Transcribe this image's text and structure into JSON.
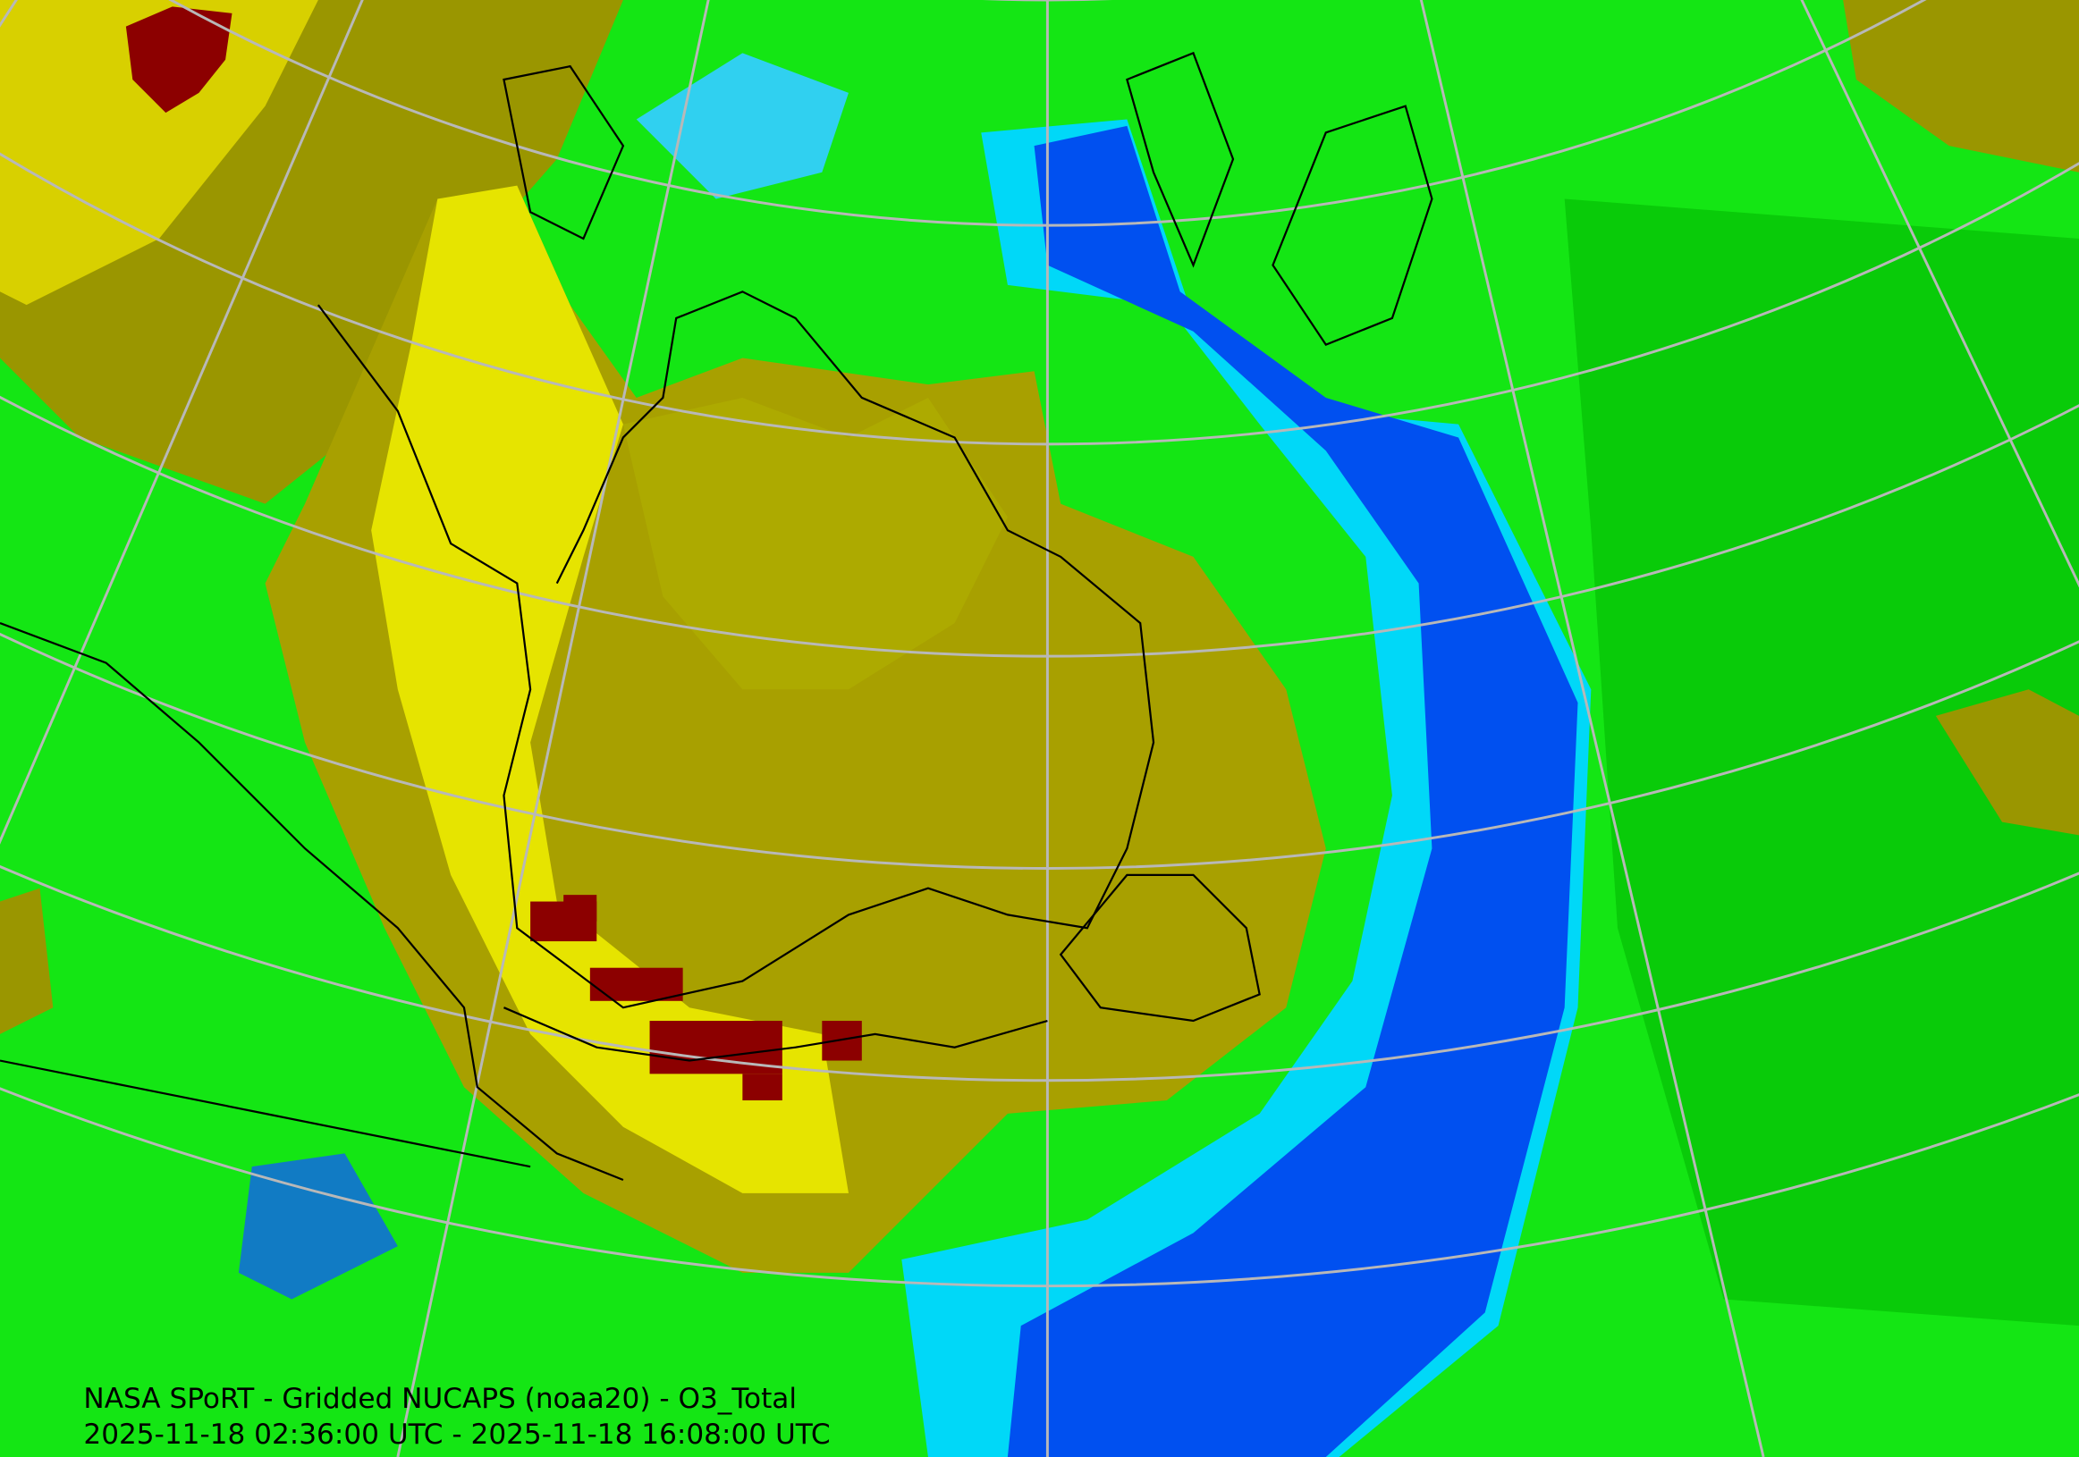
{
  "map": {
    "title": "NASA SPoRT - Gridded NUCAPS (noaa20) - O3_Total",
    "time_range": "2025-11-18 02:36:00 UTC - 2025-11-18 16:08:00 UTC"
  }
}
